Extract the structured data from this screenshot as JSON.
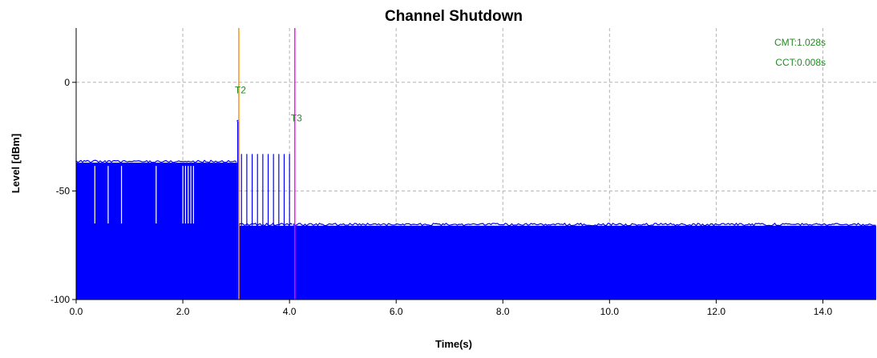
{
  "chart_data": {
    "type": "area",
    "title": "Channel Shutdown",
    "xlabel": "Time(s)",
    "ylabel": "Level [dBm]",
    "xlim": [
      0,
      15
    ],
    "ylim": [
      -100,
      25
    ],
    "x_ticks": [
      0,
      2,
      4,
      6,
      8,
      10,
      12,
      14
    ],
    "x_tick_labels": [
      "0.0",
      "2.0",
      "4.0",
      "6.0",
      "8.0",
      "10.0",
      "12.0",
      "14.0"
    ],
    "y_ticks": [
      -100,
      -50,
      0
    ],
    "y_tick_labels": [
      "-100",
      "-50",
      "0"
    ],
    "grid": true,
    "fill_color": "#0000ff",
    "segments": [
      {
        "x_start": 0,
        "x_end": 3.02,
        "level": -37
      },
      {
        "x_start": 3.02,
        "x_end": 3.06,
        "level": -18
      },
      {
        "x_start": 3.06,
        "x_end": 4.08,
        "level": -66
      },
      {
        "x_start": 4.08,
        "x_end": 15,
        "level": -66
      }
    ],
    "spikes_low": [
      0.35,
      0.6,
      0.85,
      1.5,
      2.0,
      2.05,
      2.1,
      2.15,
      2.2
    ],
    "spikes_high": [
      3.1,
      3.2,
      3.3,
      3.4,
      3.5,
      3.6,
      3.7,
      3.8,
      3.9,
      4.0
    ],
    "markers": [
      {
        "label": "T2",
        "x": 3.05,
        "color": "#ff8c00",
        "label_y": -5
      },
      {
        "label": "T3",
        "x": 4.1,
        "color": "#ff00ff",
        "label_y": -18
      }
    ],
    "annotations": [
      {
        "text": "CMT:1.028s",
        "color": "#228b22"
      },
      {
        "text": "CCT:0.008s",
        "color": "#228b22"
      }
    ]
  }
}
